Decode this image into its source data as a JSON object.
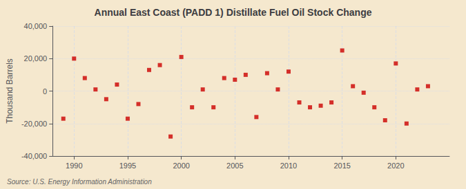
{
  "chart_data": {
    "type": "scatter",
    "title": "Annual East Coast (PADD 1) Distillate Fuel Oil Stock Change",
    "ylabel": "Thousand Barrels",
    "source": "Source: U.S. Energy Information Administration",
    "x": [
      1989,
      1990,
      1991,
      1992,
      1993,
      1994,
      1995,
      1996,
      1997,
      1998,
      1999,
      2000,
      2001,
      2002,
      2003,
      2004,
      2005,
      2006,
      2007,
      2008,
      2009,
      2010,
      2011,
      2012,
      2013,
      2014,
      2015,
      2016,
      2017,
      2018,
      2019,
      2020,
      2021,
      2022,
      2023
    ],
    "values": [
      -17000,
      20000,
      8000,
      1000,
      -5000,
      4000,
      -17000,
      -8000,
      13000,
      16000,
      -28000,
      21000,
      -10000,
      1000,
      -10000,
      8000,
      7000,
      10000,
      -16000,
      11000,
      1000,
      12000,
      -7000,
      -10000,
      -9000,
      -7000,
      25000,
      3000,
      -1000,
      -10000,
      -18000,
      17000,
      -20000,
      1000,
      3000
    ],
    "color": "#cc0000",
    "marker": "square",
    "xlim": [
      1988,
      2025
    ],
    "xticks": [
      1990,
      1995,
      2000,
      2005,
      2010,
      2015,
      2020
    ],
    "ylim": [
      -40000,
      40000
    ],
    "yticks": [
      {
        "value": -40000,
        "label": "-40,000"
      },
      {
        "value": -20000,
        "label": "-20,000"
      },
      0,
      {
        "value": 20000,
        "label": "20,000"
      },
      {
        "value": 40000,
        "label": "40,000"
      }
    ],
    "grid": true
  }
}
